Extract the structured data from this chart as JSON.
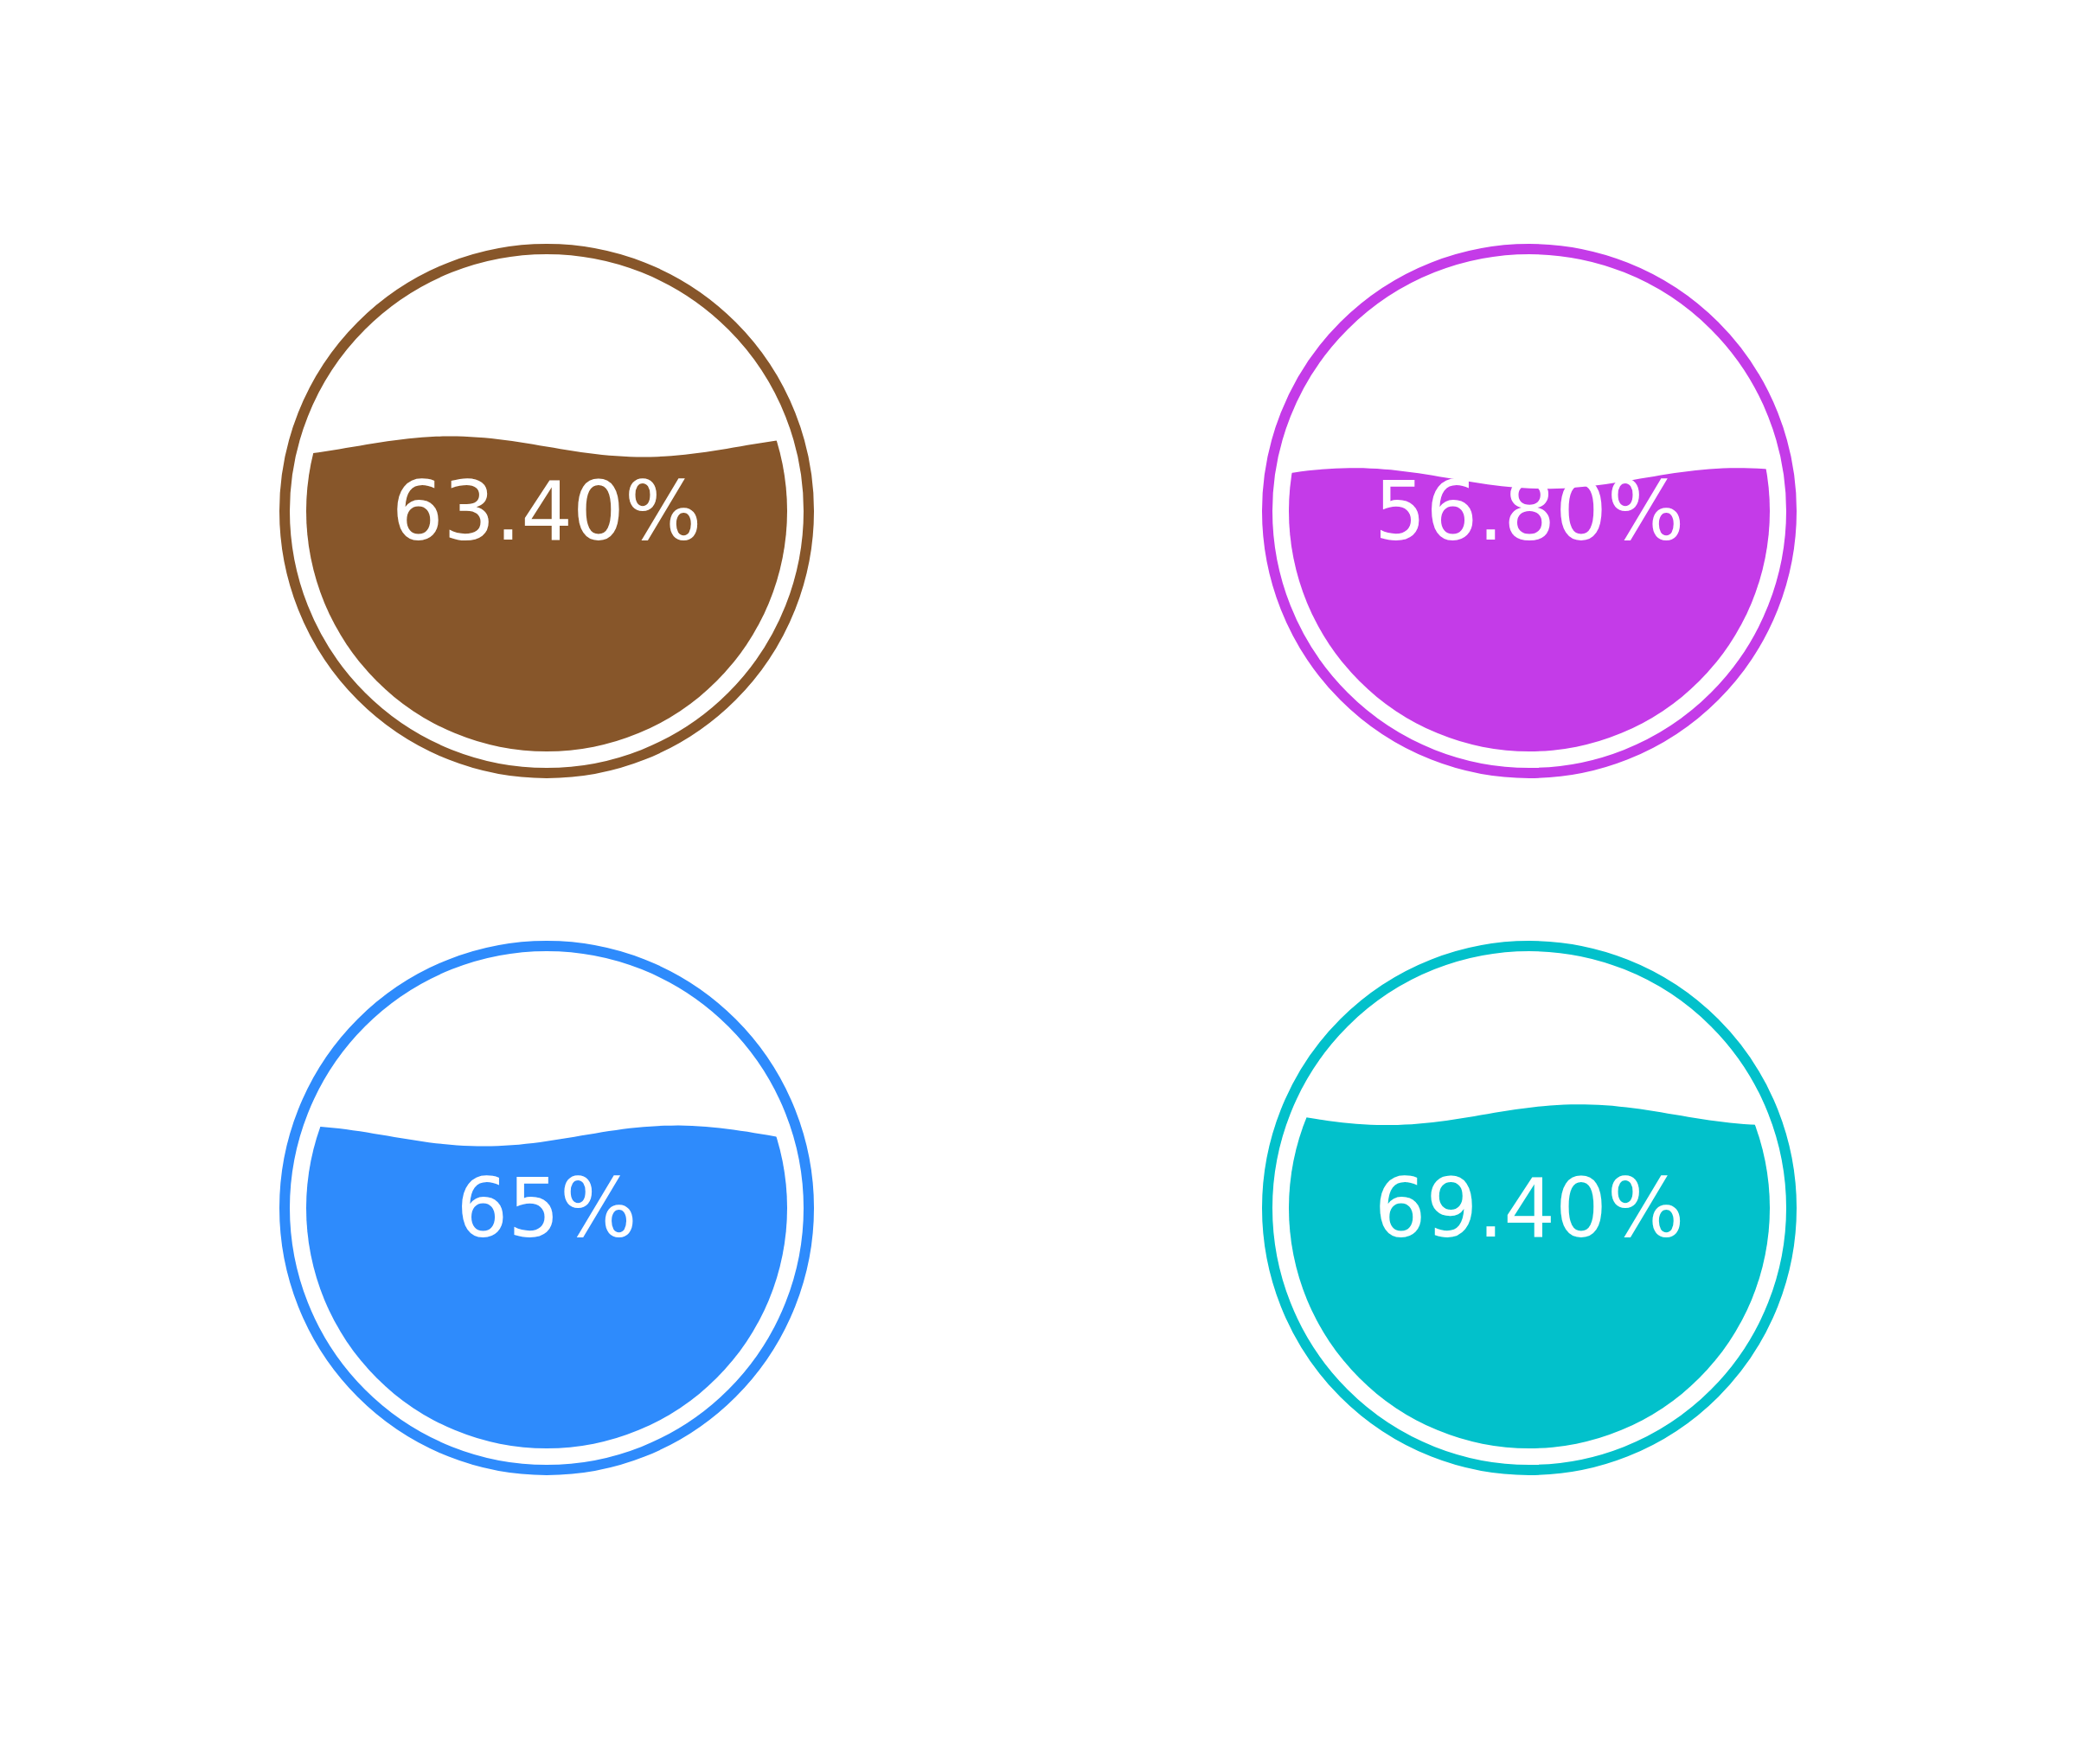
{
  "chart_data": [
    {
      "type": "other",
      "values": [
        63.4
      ],
      "value_labels": [
        "63.40%"
      ],
      "color": "#87562a"
    },
    {
      "type": "other",
      "values": [
        56.8
      ],
      "value_labels": [
        "56.80%"
      ],
      "color": "#c43be8"
    },
    {
      "type": "other",
      "values": [
        65
      ],
      "value_labels": [
        "65%"
      ],
      "color": "#2e8bfc"
    },
    {
      "type": "other",
      "values": [
        69.4
      ],
      "value_labels": [
        "69.40%"
      ],
      "color": "#02c1cb"
    }
  ]
}
